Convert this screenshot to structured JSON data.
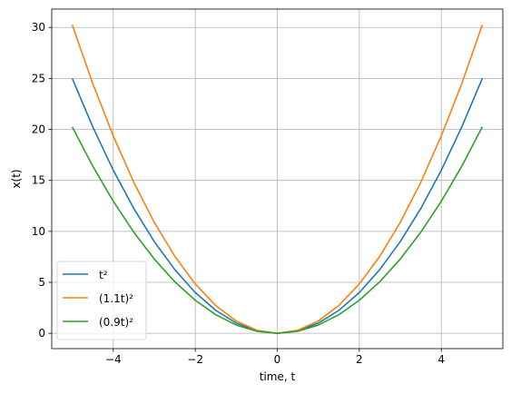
{
  "chart_data": {
    "type": "line",
    "title": "",
    "xlabel": "time, t",
    "ylabel": "x(t)",
    "xlim": [
      -5.5,
      5.5
    ],
    "ylim": [
      -1.5,
      31.8
    ],
    "grid": true,
    "legend_position": "lower-left",
    "x_ticks": [
      -4,
      -2,
      0,
      2,
      4
    ],
    "x_tick_labels": [
      "−4",
      "−2",
      "0",
      "2",
      "4"
    ],
    "y_ticks": [
      0,
      5,
      10,
      15,
      20,
      25,
      30
    ],
    "y_tick_labels": [
      "0",
      "5",
      "10",
      "15",
      "20",
      "25",
      "30"
    ],
    "x": [
      -5,
      -4.5,
      -4,
      -3.5,
      -3,
      -2.5,
      -2,
      -1.5,
      -1,
      -0.5,
      0,
      0.5,
      1,
      1.5,
      2,
      2.5,
      3,
      3.5,
      4,
      4.5,
      5
    ],
    "series": [
      {
        "name": "t²",
        "color": "#1f77b4",
        "values": [
          25,
          20.25,
          16,
          12.25,
          9,
          6.25,
          4,
          2.25,
          1,
          0.25,
          0,
          0.25,
          1,
          2.25,
          4,
          6.25,
          9,
          12.25,
          16,
          20.25,
          25
        ]
      },
      {
        "name": "(1.1t)²",
        "color": "#ff7f0e",
        "values": [
          30.25,
          24.5,
          19.36,
          14.82,
          10.89,
          7.56,
          4.84,
          2.72,
          1.21,
          0.3,
          0,
          0.3,
          1.21,
          2.72,
          4.84,
          7.56,
          10.89,
          14.82,
          19.36,
          24.5,
          30.25
        ]
      },
      {
        "name": "(0.9t)²",
        "color": "#2ca02c",
        "values": [
          20.25,
          16.4,
          12.96,
          9.92,
          7.29,
          5.06,
          3.24,
          1.82,
          0.81,
          0.2,
          0,
          0.2,
          0.81,
          1.82,
          3.24,
          5.06,
          7.29,
          9.92,
          12.96,
          16.4,
          20.25
        ]
      }
    ]
  }
}
